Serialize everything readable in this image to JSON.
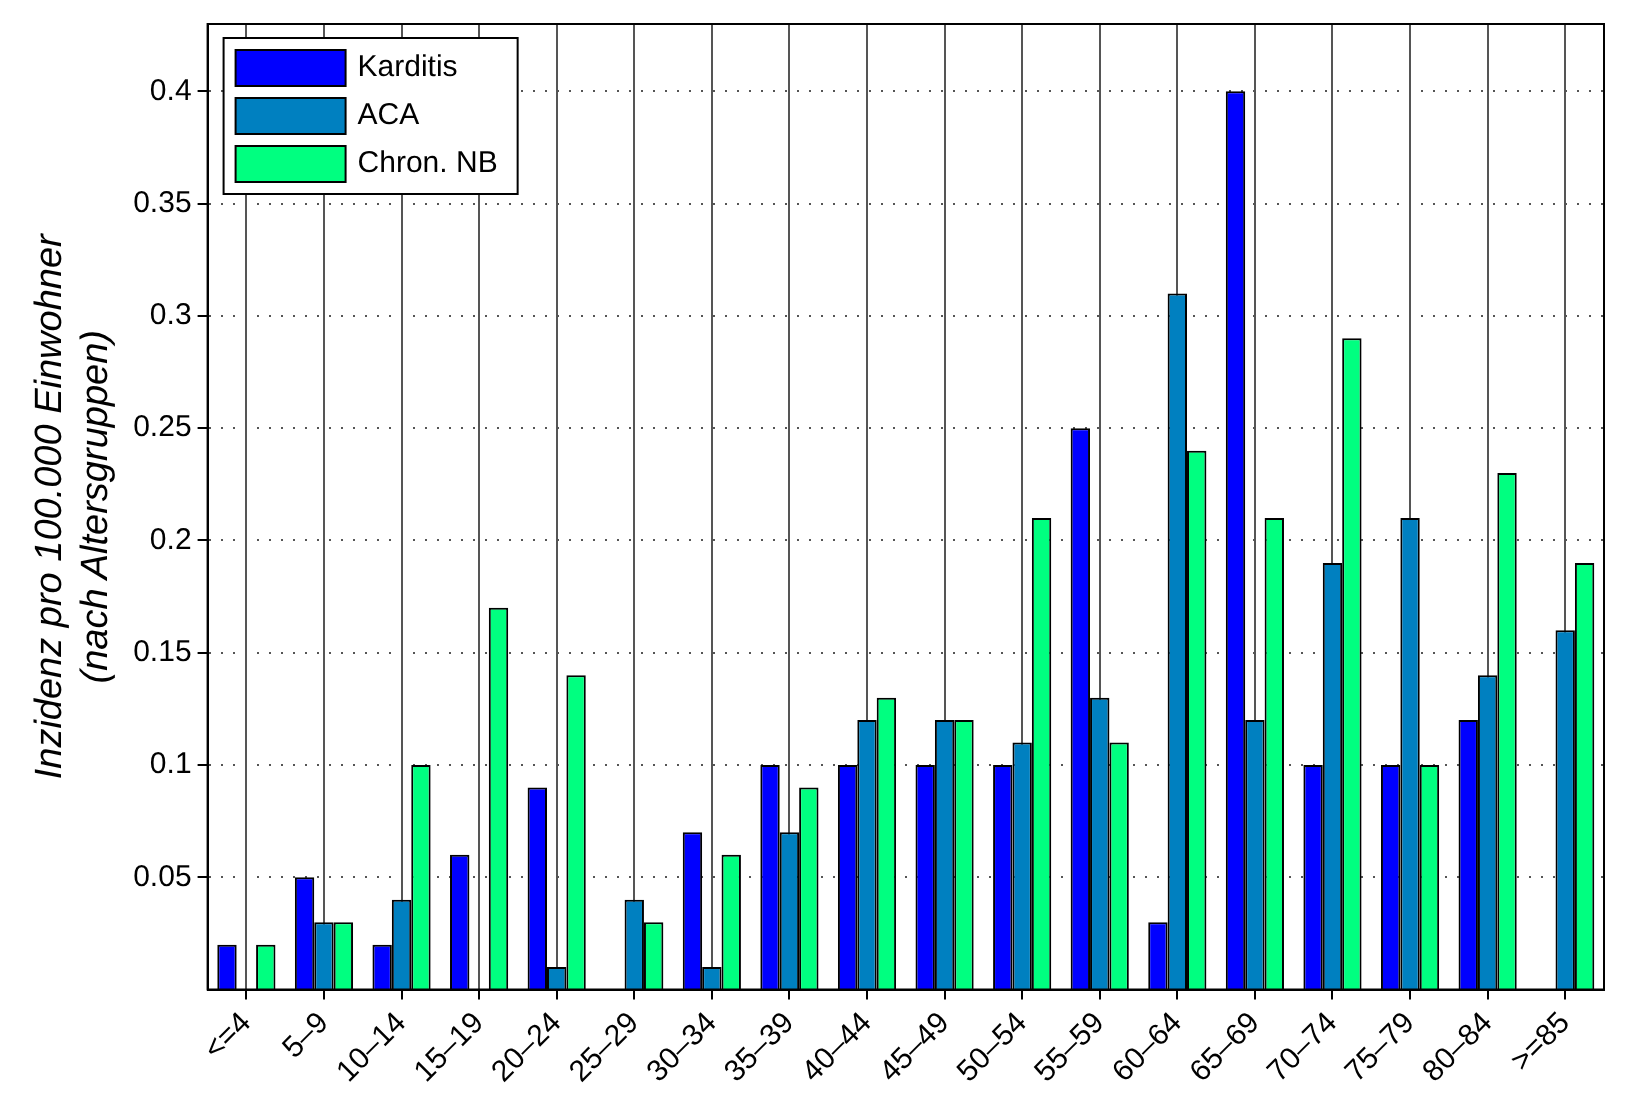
{
  "chart_data": {
    "type": "bar",
    "ylabel": "Inzidenz pro 100.000 Einwohner\n(nach Altersgruppen)",
    "categories": [
      "<=4",
      "5–9",
      "10–14",
      "15–19",
      "20–24",
      "25–29",
      "30–34",
      "35–39",
      "40–44",
      "45–49",
      "50–54",
      "55–59",
      "60–64",
      "65–69",
      "70–74",
      "75–79",
      "80–84",
      ">=85"
    ],
    "series": [
      {
        "name": "Karditis",
        "color": "#0000ff",
        "values": [
          0.02,
          0.05,
          0.02,
          0.06,
          0.09,
          0,
          0.07,
          0.1,
          0.1,
          0.1,
          0.1,
          0.25,
          0.03,
          0.4,
          0.1,
          0.1,
          0.12,
          0
        ]
      },
      {
        "name": "ACA",
        "color": "#0080c0",
        "values": [
          0,
          0.03,
          0.04,
          0,
          0.01,
          0.04,
          0.01,
          0.07,
          0.12,
          0.12,
          0.11,
          0.13,
          0.31,
          0.12,
          0.19,
          0.21,
          0.14,
          0.16
        ]
      },
      {
        "name": "Chron. NB",
        "color": "#00ff80",
        "values": [
          0.02,
          0.03,
          0.1,
          0.17,
          0.14,
          0.03,
          0.06,
          0.09,
          0.13,
          0.12,
          0.21,
          0.11,
          0.24,
          0.21,
          0.29,
          0.1,
          0.23,
          0.19
        ]
      }
    ],
    "ylim": [
      0,
      0.43
    ],
    "yticks": [
      0.05,
      0.1,
      0.15,
      0.2,
      0.25,
      0.3,
      0.35,
      0.4
    ],
    "grid": true,
    "legend": "top left"
  }
}
